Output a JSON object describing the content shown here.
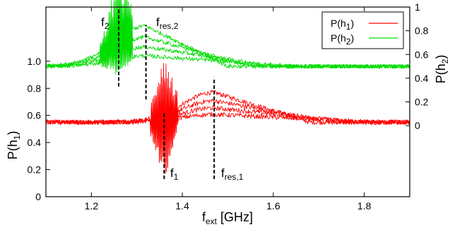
{
  "chart_data": {
    "type": "line",
    "xlabel": {
      "main": "f",
      "sub": "ext",
      "rest": " [GHz]"
    },
    "ylabel_left": {
      "main": "P(h",
      "sub": "1",
      "rest": ")"
    },
    "ylabel_right": {
      "main": "P(h",
      "sub": "2",
      "rest": ")"
    },
    "xlim": [
      1.1,
      1.9
    ],
    "ylim_left": [
      0,
      1.4
    ],
    "ylim_right": [
      -0.6,
      1.0
    ],
    "x_ticks": [
      1.2,
      1.4,
      1.6,
      1.8
    ],
    "x_tick_labels": [
      "1.2",
      "1.4",
      "1.6",
      "1.8"
    ],
    "y_left_ticks": [
      0,
      0.2,
      0.4,
      0.6,
      0.8,
      1.0
    ],
    "y_left_tick_labels": [
      "0",
      "0.2",
      "0.4",
      "0.6",
      "0.8",
      "1.0"
    ],
    "y_right_ticks": [
      0,
      0.2,
      0.4,
      0.6,
      0.8,
      1.0
    ],
    "y_right_tick_labels": [
      "0",
      "0.2",
      "0.4",
      "0.6",
      "0.8",
      "1"
    ],
    "legend_position": "top-right",
    "series": [
      {
        "name": "P(h1)",
        "name_main": "P(h",
        "name_sub": "1",
        "name_rest": ")",
        "color": "#ff0000",
        "axis": "left",
        "baseline": 0.55,
        "peak_x": 1.47,
        "peak_y": 0.77,
        "resonance_end_x": 1.68,
        "dip_x": 1.36,
        "oscillation_range": [
          0.08,
          0.92
        ],
        "oscillation_span_x": [
          1.33,
          1.39
        ]
      },
      {
        "name": "P(h2)",
        "name_main": "P(h",
        "name_sub": "2",
        "name_rest": ")",
        "color": "#00dd00",
        "axis": "right",
        "baseline": 0.5,
        "peak_x": 1.32,
        "peak_y": 0.84,
        "resonance_end_x": 1.5,
        "dip_x": 1.26,
        "oscillation_range": [
          0.32,
          0.99
        ],
        "oscillation_span_x": [
          1.22,
          1.29
        ]
      }
    ],
    "annotations": [
      {
        "main": "f",
        "sub": "2",
        "x": 1.26
      },
      {
        "main": "f",
        "sub": "res,2",
        "x": 1.32
      },
      {
        "main": "f",
        "sub": "1",
        "x": 1.36
      },
      {
        "main": "f",
        "sub": "res,1",
        "x": 1.47
      }
    ]
  }
}
